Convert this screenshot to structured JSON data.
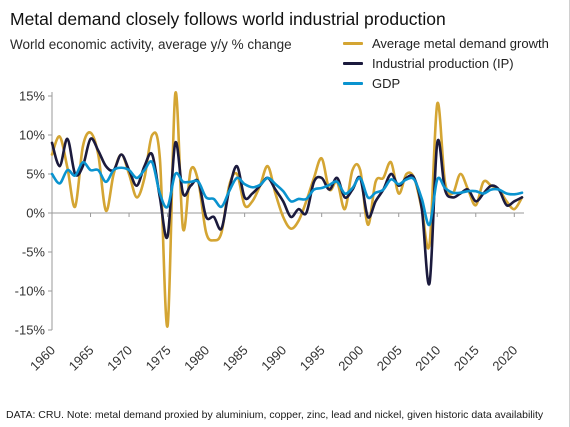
{
  "title": "Metal demand closely follows world industrial production",
  "subtitle": "World economic activity, average y/y % change",
  "source_note": "DATA: CRU. Note: metal demand proxied by aluminium, copper, zinc, lead and nickel, given historic data availability",
  "chart_data": {
    "type": "line",
    "title": "Metal demand closely follows world industrial production",
    "subtitle": "World economic activity, average y/y % change",
    "xlabel": "",
    "ylabel": "",
    "xlim": [
      1960,
      2021
    ],
    "ylim": [
      -15,
      15
    ],
    "x_ticks": [
      1960,
      1965,
      1970,
      1975,
      1980,
      1985,
      1990,
      1995,
      2000,
      2005,
      2010,
      2015,
      2020
    ],
    "x_tick_labels": [
      "1960",
      "1965",
      "1970",
      "1975",
      "1980",
      "1985",
      "1990",
      "1995",
      "2000",
      "2005",
      "2010",
      "2015",
      "2020"
    ],
    "y_ticks": [
      15,
      10,
      5,
      0,
      -5,
      -10,
      -15
    ],
    "y_tick_labels": [
      "15%",
      "10%",
      "5%",
      "0%",
      "-5%",
      "-10%",
      "-15%"
    ],
    "grid": false,
    "legend_position": "top-right",
    "x": [
      1960,
      1961,
      1962,
      1963,
      1964,
      1965,
      1966,
      1967,
      1968,
      1969,
      1970,
      1971,
      1972,
      1973,
      1974,
      1975,
      1976,
      1977,
      1978,
      1979,
      1980,
      1981,
      1982,
      1983,
      1984,
      1985,
      1986,
      1987,
      1988,
      1989,
      1990,
      1991,
      1992,
      1993,
      1994,
      1995,
      1996,
      1997,
      1998,
      1999,
      2000,
      2001,
      2002,
      2003,
      2004,
      2005,
      2006,
      2007,
      2008,
      2009,
      2010,
      2011,
      2012,
      2013,
      2014,
      2015,
      2016,
      2017,
      2018,
      2019,
      2020,
      2021
    ],
    "series": [
      {
        "name": "Average metal demand growth",
        "color": "#d4a533",
        "values": [
          7.5,
          9.8,
          5.8,
          0.8,
          8.5,
          10.3,
          7.5,
          0.3,
          5.0,
          7.5,
          5.0,
          2.0,
          4.5,
          10.0,
          7.0,
          -14.5,
          15.3,
          -2.0,
          5.5,
          4.0,
          -2.5,
          -3.5,
          -2.5,
          3.5,
          5.0,
          1.0,
          1.5,
          3.5,
          6.0,
          2.5,
          -0.5,
          -2.0,
          -1.0,
          1.5,
          4.5,
          7.0,
          3.0,
          4.0,
          0.5,
          5.5,
          5.5,
          -1.5,
          4.0,
          4.5,
          6.5,
          2.5,
          5.0,
          4.5,
          0.5,
          -4.0,
          14.0,
          4.0,
          2.5,
          5.0,
          3.0,
          1.0,
          4.0,
          3.5,
          3.0,
          1.5,
          0.5,
          2.0
        ]
      },
      {
        "name": "Industrial production (IP)",
        "color": "#1b1a3d",
        "values": [
          9.0,
          6.0,
          9.5,
          5.0,
          6.0,
          9.5,
          8.0,
          6.0,
          5.5,
          7.5,
          5.5,
          3.5,
          6.0,
          7.5,
          2.0,
          -3.0,
          9.0,
          2.5,
          3.5,
          4.0,
          -0.5,
          -0.5,
          -2.0,
          3.0,
          6.0,
          2.0,
          2.5,
          3.5,
          4.5,
          3.0,
          1.5,
          -0.5,
          0.5,
          0.0,
          4.0,
          4.5,
          3.0,
          4.5,
          2.0,
          3.0,
          4.5,
          -0.5,
          1.5,
          3.0,
          5.0,
          3.5,
          4.5,
          4.5,
          0.5,
          -9.0,
          9.0,
          3.0,
          2.0,
          2.5,
          3.0,
          1.5,
          2.5,
          3.5,
          3.0,
          1.0,
          1.5,
          2.0
        ]
      },
      {
        "name": "GDP",
        "color": "#0a93cf",
        "values": [
          5.0,
          3.8,
          5.5,
          4.8,
          6.5,
          5.5,
          5.5,
          4.0,
          5.5,
          5.8,
          5.5,
          4.5,
          5.5,
          6.5,
          2.5,
          0.8,
          5.0,
          4.0,
          4.0,
          4.0,
          2.0,
          1.8,
          0.8,
          2.8,
          4.5,
          3.7,
          3.3,
          3.6,
          4.5,
          3.7,
          2.8,
          1.5,
          1.8,
          1.8,
          3.0,
          3.2,
          3.6,
          4.0,
          2.5,
          3.2,
          4.5,
          2.0,
          2.6,
          3.0,
          4.3,
          3.7,
          4.3,
          4.3,
          1.8,
          -1.5,
          4.3,
          3.2,
          2.6,
          2.6,
          2.8,
          2.8,
          2.5,
          3.0,
          3.0,
          2.5,
          2.4,
          2.6
        ]
      }
    ]
  }
}
